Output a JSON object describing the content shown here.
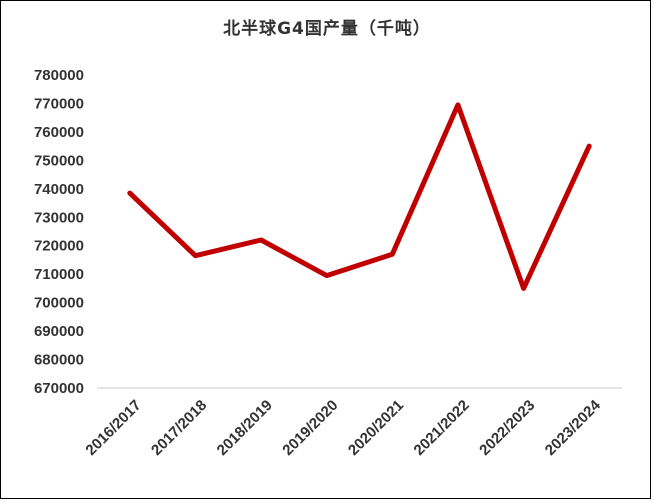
{
  "chart_data": {
    "type": "line",
    "title": "北半球G4国产量（千吨）",
    "categories": [
      "2016/2017",
      "2017/2018",
      "2018/2019",
      "2019/2020",
      "2020/2021",
      "2021/2022",
      "2022/2023",
      "2023/2024"
    ],
    "series": [
      {
        "values": [
          738500,
          716500,
          722000,
          709500,
          717000,
          769500,
          705000,
          755000
        ]
      }
    ],
    "ylim": [
      670000,
      780000
    ],
    "yticks": [
      780000,
      770000,
      760000,
      750000,
      740000,
      730000,
      720000,
      710000,
      700000,
      690000,
      680000,
      670000
    ],
    "grid": false,
    "line_color": "#c00000",
    "axis_color": "#d9d9d9"
  }
}
